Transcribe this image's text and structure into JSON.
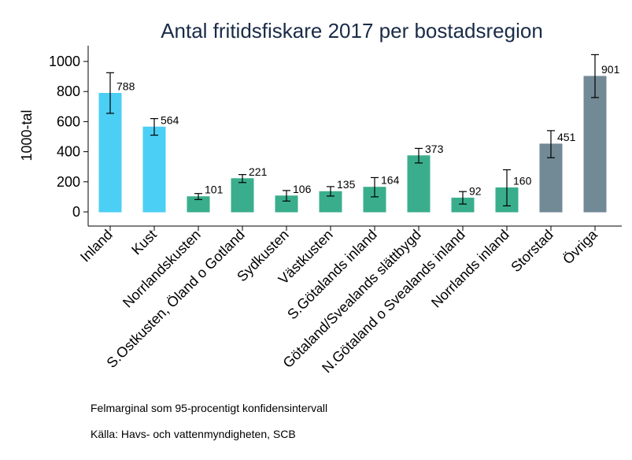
{
  "chart_data": {
    "type": "bar",
    "title": "Antal fritidsfiskare 2017 per bostadsregion",
    "ylabel": "1000-tal",
    "xlabel": "",
    "ylim": [
      0,
      1100
    ],
    "yticks": [
      0,
      200,
      400,
      600,
      800,
      1000
    ],
    "categories": [
      "Inland",
      "Kust",
      "Norrlandskusten",
      "S.Ostkusten, Öland o Gotland",
      "Sydkusten",
      "Västkusten",
      "S.Götalands inland",
      "Götaland/Svealands slättbygd",
      "N.Götaland o Svealands inland",
      "Norrlands inland",
      "Storstad",
      "Övriga"
    ],
    "values": [
      788,
      564,
      101,
      221,
      106,
      135,
      164,
      373,
      92,
      160,
      451,
      901
    ],
    "value_labels": [
      "788",
      "564",
      "101",
      "221",
      "106",
      "135",
      "164",
      "373",
      "92",
      "160",
      "451",
      "901"
    ],
    "ci_low": [
      655,
      510,
      82,
      195,
      72,
      105,
      100,
      325,
      52,
      40,
      360,
      760
    ],
    "ci_high": [
      925,
      620,
      122,
      248,
      142,
      168,
      228,
      422,
      135,
      280,
      540,
      1045
    ],
    "groups": [
      "national",
      "national",
      "region",
      "region",
      "region",
      "region",
      "region",
      "region",
      "region",
      "region",
      "urban",
      "urban"
    ],
    "colors": {
      "national": "#4ccff5",
      "region": "#3aae8c",
      "urban": "#728a96",
      "errorbar": "#000000"
    },
    "grid": false
  },
  "notes": {
    "ci_note": "Felmarginal som 95-procentigt konfidensintervall",
    "source": "Källa: Havs- och vattenmyndigheten, SCB"
  }
}
